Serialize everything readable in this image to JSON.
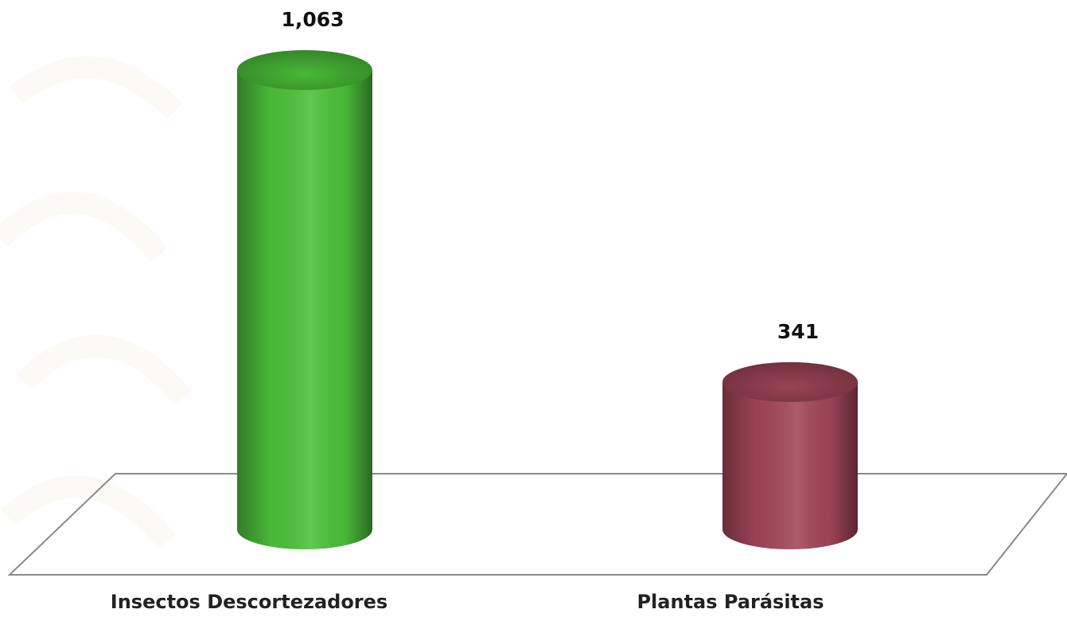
{
  "chart_data": {
    "type": "cylinder-bar",
    "categories": [
      "Insectos Descortezadores",
      "Plantas Parásitas"
    ],
    "values": [
      1063,
      341
    ],
    "value_labels": [
      "1,063",
      "341"
    ],
    "colors": [
      "#4cc13a",
      "#a24659"
    ]
  }
}
